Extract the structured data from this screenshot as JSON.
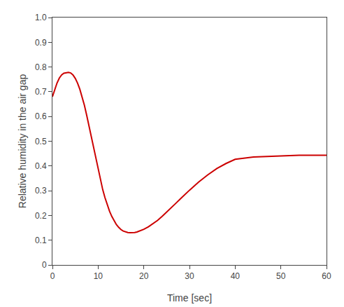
{
  "chart_data": {
    "type": "line",
    "xlabel": "Time [sec]",
    "ylabel": "Relative humidity in the air gap",
    "x": [
      0,
      0.5,
      1.0,
      1.5,
      2.0,
      2.5,
      3.0,
      3.5,
      4.0,
      4.5,
      5.0,
      5.5,
      6.0,
      6.5,
      7.0,
      7.5,
      8.0,
      8.5,
      9.0,
      9.5,
      10.0,
      10.5,
      11.0,
      11.5,
      12.0,
      12.5,
      13.0,
      13.5,
      14.0,
      14.5,
      15.0,
      15.5,
      16.0,
      16.5,
      17.0,
      17.5,
      18.0,
      18.5,
      19.0,
      20.0,
      21.0,
      22.0,
      23.0,
      24.0,
      25.0,
      26.0,
      27.0,
      28.0,
      29.0,
      30.0,
      32.0,
      34.0,
      36.0,
      38.0,
      40.0,
      42.0,
      44.0,
      46.0,
      48.0,
      50.0,
      52.0,
      54.0,
      56.0,
      58.0,
      60.0
    ],
    "values": [
      0.68,
      0.71,
      0.735,
      0.755,
      0.768,
      0.775,
      0.777,
      0.778,
      0.776,
      0.768,
      0.754,
      0.735,
      0.71,
      0.68,
      0.645,
      0.605,
      0.562,
      0.518,
      0.472,
      0.426,
      0.382,
      0.342,
      0.305,
      0.272,
      0.242,
      0.217,
      0.196,
      0.178,
      0.163,
      0.152,
      0.143,
      0.137,
      0.133,
      0.131,
      0.13,
      0.13,
      0.131,
      0.133,
      0.136,
      0.144,
      0.154,
      0.166,
      0.18,
      0.196,
      0.213,
      0.231,
      0.249,
      0.267,
      0.285,
      0.302,
      0.335,
      0.364,
      0.39,
      0.41,
      0.427,
      0.432,
      0.436,
      0.438,
      0.44,
      0.441,
      0.442,
      0.443,
      0.443,
      0.443,
      0.443
    ],
    "color": "#cc0000",
    "xlim": [
      0,
      60
    ],
    "ylim": [
      0,
      1
    ],
    "xticks": [
      0,
      10,
      20,
      30,
      40,
      50,
      60
    ],
    "yticks": [
      0,
      0.1,
      0.2,
      0.3,
      0.4,
      0.5,
      0.6,
      0.7,
      0.8,
      0.9,
      {
        "value": 1,
        "label": "1.0"
      }
    ],
    "grid": false
  }
}
